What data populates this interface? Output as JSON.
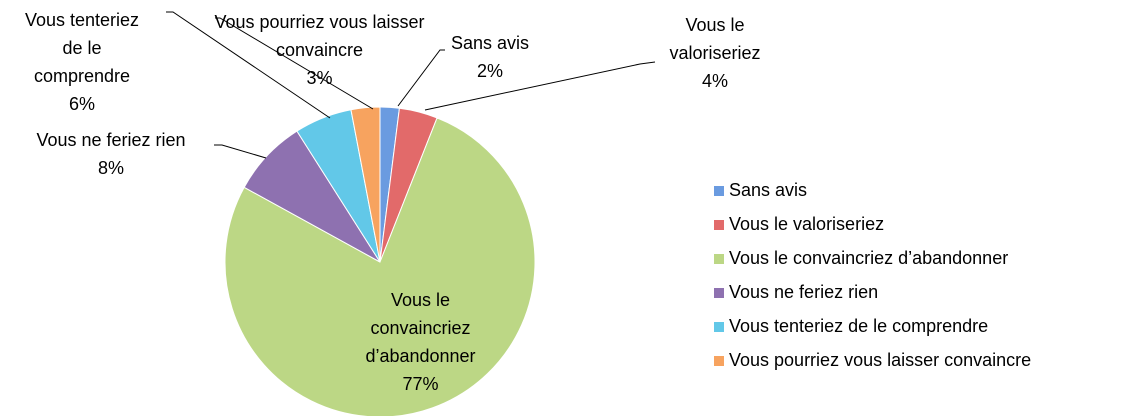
{
  "chart_data": {
    "type": "pie",
    "categories": [
      "Sans avis",
      "Vous le valoriseriez",
      "Vous le convaincriez d’abandonner",
      "Vous ne feriez rien",
      "Vous tenteriez de le comprendre",
      "Vous pourriez vous laisser convaincre"
    ],
    "values": [
      2,
      4,
      77,
      8,
      6,
      3
    ],
    "value_labels": [
      "2%",
      "4%",
      "77%",
      "8%",
      "6%",
      "3%"
    ],
    "colors": [
      "#6a9be0",
      "#e26a6a",
      "#bcd785",
      "#8e71b0",
      "#62c8e8",
      "#f7a35f"
    ],
    "legend": "right"
  }
}
